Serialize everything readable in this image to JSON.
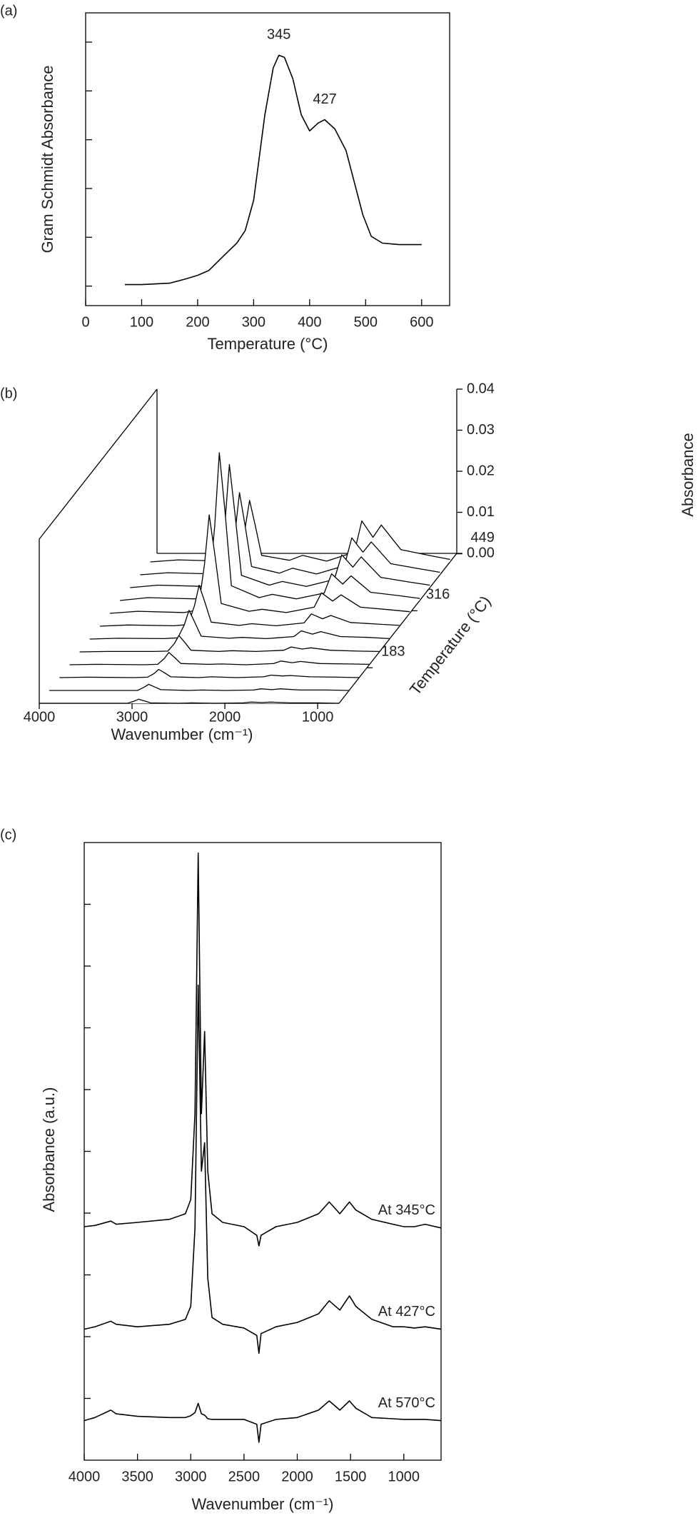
{
  "chart_data": [
    {
      "type": "line",
      "panel": "(a)",
      "x_label": "Temperature (°C)",
      "y_label": "Gram Schmidt Absorbance",
      "xlim": [
        0,
        650
      ],
      "xticks": [
        0,
        100,
        200,
        300,
        400,
        500,
        600
      ],
      "ylim": [
        -0.4,
        5.6
      ],
      "yticks": [
        0,
        1,
        2,
        3,
        4,
        5
      ],
      "y_tick_labels": false,
      "x": [
        70,
        100,
        150,
        180,
        200,
        220,
        250,
        270,
        285,
        300,
        320,
        335,
        345,
        355,
        370,
        385,
        400,
        415,
        427,
        445,
        465,
        480,
        495,
        510,
        530,
        560,
        600
      ],
      "series": [
        {
          "color": "#000000",
          "values": [
            0.03,
            0.03,
            0.06,
            0.15,
            0.22,
            0.32,
            0.66,
            0.88,
            1.14,
            1.76,
            3.51,
            4.47,
            4.73,
            4.69,
            4.25,
            3.51,
            3.18,
            3.34,
            3.41,
            3.22,
            2.78,
            2.12,
            1.46,
            1.02,
            0.88,
            0.85,
            0.85
          ]
        }
      ],
      "annotations": [
        {
          "text": "345",
          "x": 345
        },
        {
          "text": "427",
          "x": 427
        }
      ]
    },
    {
      "type": "waterfall",
      "panel": "(b)",
      "x_label": "Wavenumber (cm⁻¹)",
      "y_label": "Absorbance",
      "z_label": "Temperature (°C)",
      "xlim": [
        4000,
        770
      ],
      "xticks": [
        4000,
        3000,
        2000,
        1000
      ],
      "ylim": [
        0,
        0.04
      ],
      "yticks": [
        {
          "value": 0,
          "label": "0.00"
        },
        {
          "value": 0.01,
          "label": "0.01"
        },
        {
          "value": 0.02,
          "label": "0.02"
        },
        {
          "value": 0.03,
          "label": "0.03"
        },
        {
          "value": 0.04,
          "label": "0.04"
        }
      ],
      "zlim": [
        100,
        450
      ],
      "zticks": [
        183,
        316,
        449
      ],
      "color": "#000000",
      "x": [
        4000,
        3700,
        3200,
        3050,
        2980,
        2930,
        2870,
        2800,
        2500,
        2360,
        2100,
        1800,
        1720,
        1600,
        1510,
        1300,
        1000,
        770
      ],
      "series": [
        {
          "z": 100,
          "values": [
            0,
            0,
            0,
            0,
            0.0005,
            0.001,
            0.0006,
            0.0001,
            0,
            0.0001,
            0,
            0.0001,
            0.0003,
            0.0002,
            0.0003,
            0.0001,
            0.0001,
            0
          ]
        },
        {
          "z": 130,
          "values": [
            0,
            0,
            0,
            0,
            0.0008,
            0.0015,
            0.0009,
            0.0002,
            0,
            0.0001,
            0,
            0.0001,
            0.0004,
            0.0002,
            0.0004,
            0.0001,
            0.0001,
            0
          ]
        },
        {
          "z": 160,
          "values": [
            0,
            0.0001,
            0,
            0.0001,
            0.001,
            0.002,
            0.0012,
            0.0002,
            0,
            0.0002,
            0,
            0.0002,
            0.0006,
            0.0004,
            0.0005,
            0.0002,
            0.0001,
            0
          ]
        },
        {
          "z": 190,
          "values": [
            0,
            0.0001,
            0,
            0.0001,
            0.0015,
            0.003,
            0.0018,
            0.0003,
            0.0001,
            0.0002,
            0,
            0.0003,
            0.0009,
            0.0005,
            0.0008,
            0.0003,
            0.0002,
            0.0001
          ]
        },
        {
          "z": 220,
          "values": [
            0,
            0.0001,
            0.0001,
            0.0002,
            0.002,
            0.004,
            0.0024,
            0.0004,
            0.0001,
            0.0003,
            0.0001,
            0.0004,
            0.0012,
            0.0007,
            0.001,
            0.0004,
            0.0002,
            0.0001
          ]
        },
        {
          "z": 250,
          "values": [
            0,
            0.0002,
            0.0001,
            0.0003,
            0.0035,
            0.007,
            0.0042,
            0.0007,
            0.0002,
            0.0004,
            0.0001,
            0.0006,
            0.002,
            0.0012,
            0.0018,
            0.0006,
            0.0004,
            0.0001
          ]
        },
        {
          "z": 280,
          "values": [
            0,
            0.0003,
            0.0001,
            0.0004,
            0.005,
            0.01,
            0.006,
            0.001,
            0.0002,
            0.0006,
            0.0001,
            0.0008,
            0.003,
            0.0018,
            0.0026,
            0.0009,
            0.0005,
            0.0002
          ]
        },
        {
          "z": 310,
          "values": [
            0,
            0.0005,
            0.0002,
            0.0008,
            0.012,
            0.024,
            0.0145,
            0.0024,
            0.0005,
            0.001,
            0.0002,
            0.0015,
            0.005,
            0.003,
            0.0045,
            0.0015,
            0.0009,
            0.0004
          ]
        },
        {
          "z": 340,
          "values": [
            0,
            0.0007,
            0.0004,
            0.0011,
            0.018,
            0.036,
            0.022,
            0.0036,
            0.0007,
            0.0015,
            0.0004,
            0.0018,
            0.0065,
            0.004,
            0.006,
            0.002,
            0.0012,
            0.0005
          ]
        },
        {
          "z": 370,
          "values": [
            0,
            0.0006,
            0.0003,
            0.0009,
            0.015,
            0.03,
            0.018,
            0.003,
            0.0006,
            0.0015,
            0.0003,
            0.002,
            0.008,
            0.005,
            0.0075,
            0.0025,
            0.0014,
            0.0006
          ]
        },
        {
          "z": 400,
          "values": [
            0,
            0.0005,
            0.0002,
            0.0006,
            0.01,
            0.02,
            0.012,
            0.002,
            0.0004,
            0.0016,
            0.0002,
            0.0022,
            0.009,
            0.0055,
            0.008,
            0.0027,
            0.0015,
            0.0006
          ]
        },
        {
          "z": 430,
          "values": [
            0,
            0.0005,
            0.0002,
            0.0006,
            0.008,
            0.015,
            0.009,
            0.0016,
            0.0004,
            0.0016,
            0.0002,
            0.0024,
            0.01,
            0.006,
            0.009,
            0.003,
            0.0016,
            0.0006
          ]
        }
      ]
    },
    {
      "type": "line",
      "panel": "(c)",
      "x_label": "Wavenumber (cm⁻¹)",
      "y_label": "Absorbance (a.u.)",
      "xlim": [
        4000,
        650
      ],
      "xticks": [
        4000,
        3500,
        3000,
        2500,
        2000,
        1500,
        1000
      ],
      "ylim": [
        0,
        10
      ],
      "yticks": [
        1,
        2,
        3,
        4,
        5,
        6,
        7,
        8,
        9
      ],
      "y_tick_labels": false,
      "x": [
        4000,
        3900,
        3750,
        3700,
        3500,
        3200,
        3050,
        3000,
        2960,
        2930,
        2900,
        2870,
        2840,
        2800,
        2700,
        2500,
        2380,
        2360,
        2340,
        2200,
        2000,
        1800,
        1700,
        1600,
        1510,
        1450,
        1300,
        1100,
        1000,
        900,
        800,
        650
      ],
      "series": [
        {
          "name": "At 345°C",
          "color": "#000000",
          "values": [
            3.78,
            3.8,
            3.87,
            3.82,
            3.85,
            3.9,
            3.99,
            4.22,
            5.61,
            9.83,
            5.61,
            6.94,
            4.68,
            3.99,
            3.85,
            3.78,
            3.64,
            3.47,
            3.64,
            3.78,
            3.85,
            3.99,
            4.18,
            3.99,
            4.18,
            4.05,
            3.9,
            3.82,
            3.78,
            3.78,
            3.82,
            3.76
          ]
        },
        {
          "name": "At 427°C",
          "color": "#000000",
          "values": [
            2.12,
            2.16,
            2.25,
            2.2,
            2.16,
            2.2,
            2.28,
            2.49,
            3.76,
            7.69,
            4.68,
            5.14,
            2.95,
            2.31,
            2.2,
            2.14,
            2.02,
            1.73,
            2.05,
            2.16,
            2.23,
            2.37,
            2.58,
            2.43,
            2.66,
            2.49,
            2.28,
            2.16,
            2.16,
            2.14,
            2.16,
            2.12
          ]
        },
        {
          "name": "At 570°C",
          "color": "#000000",
          "values": [
            0.64,
            0.69,
            0.81,
            0.75,
            0.71,
            0.69,
            0.69,
            0.72,
            0.77,
            0.92,
            0.75,
            0.73,
            0.67,
            0.66,
            0.66,
            0.66,
            0.58,
            0.29,
            0.58,
            0.66,
            0.69,
            0.81,
            0.96,
            0.81,
            0.96,
            0.84,
            0.69,
            0.67,
            0.66,
            0.66,
            0.66,
            0.64
          ]
        }
      ]
    }
  ]
}
